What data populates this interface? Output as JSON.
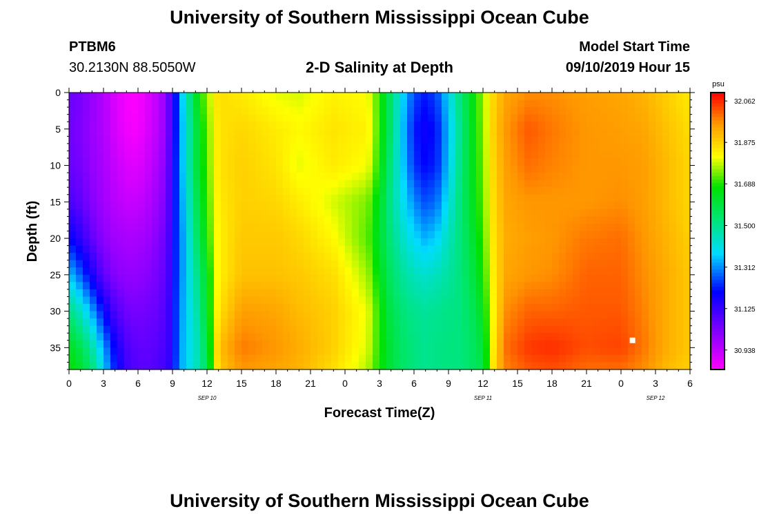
{
  "header": {
    "title": "University of Southern Mississippi Ocean Cube",
    "station": "PTBM6",
    "coords": "30.2130N 88.5050W",
    "plot_title": "2-D Salinity at Depth",
    "model_label": "Model Start Time",
    "model_time": "09/10/2019 Hour 15"
  },
  "footer": {
    "title": "University of Southern Mississippi Ocean Cube"
  },
  "chart_data": {
    "type": "heatmap",
    "title": "2-D Salinity at Depth",
    "xlabel": "Forecast Time(Z)",
    "ylabel": "Depth (ft)",
    "xlim": [
      0,
      54
    ],
    "ylim": [
      38,
      0
    ],
    "x_ticks": [
      0,
      3,
      6,
      9,
      12,
      15,
      18,
      21,
      24,
      27,
      30,
      33,
      36,
      39,
      42,
      45,
      48,
      51,
      54
    ],
    "x_tick_labels": [
      "0",
      "3",
      "6",
      "9",
      "12",
      "15",
      "18",
      "21",
      "0",
      "3",
      "6",
      "9",
      "12",
      "15",
      "18",
      "21",
      "0",
      "3",
      "6"
    ],
    "y_ticks": [
      0,
      5,
      10,
      15,
      20,
      25,
      30,
      35
    ],
    "y_tick_labels": [
      "0",
      "5",
      "10",
      "15",
      "20",
      "25",
      "30",
      "35"
    ],
    "date_labels": [
      {
        "x": 12,
        "text": "SEP 10"
      },
      {
        "x": 36,
        "text": "SEP 11"
      },
      {
        "x": 51,
        "text": "SEP 12"
      }
    ],
    "colorbar": {
      "unit": "psu",
      "range": [
        30.85,
        32.1
      ],
      "ticks": [
        32.062,
        31.875,
        31.688,
        31.5,
        31.312,
        31.125,
        30.938
      ],
      "tick_labels": [
        "32.062",
        "31.875",
        "31.688",
        "31.500",
        "31.312",
        "31.125",
        "30.938"
      ]
    },
    "depths": [
      0,
      5,
      10,
      15,
      20,
      25,
      30,
      35,
      38
    ],
    "profiles": [
      {
        "t": 0,
        "s": [
          31.06,
          31.05,
          31.06,
          31.1,
          31.2,
          31.36,
          31.52,
          31.64,
          31.68
        ]
      },
      {
        "t": 1,
        "s": [
          31.04,
          31.03,
          31.04,
          31.07,
          31.14,
          31.27,
          31.44,
          31.58,
          31.62
        ]
      },
      {
        "t": 2,
        "s": [
          31.0,
          30.99,
          31.0,
          31.02,
          31.07,
          31.17,
          31.33,
          31.48,
          31.53
        ]
      },
      {
        "t": 3,
        "s": [
          30.96,
          30.96,
          30.97,
          30.98,
          31.01,
          31.07,
          31.2,
          31.33,
          31.38
        ]
      },
      {
        "t": 4,
        "s": [
          30.9,
          30.91,
          30.93,
          30.95,
          30.98,
          31.02,
          31.1,
          31.19,
          31.22
        ]
      },
      {
        "t": 5,
        "s": [
          30.86,
          30.87,
          30.9,
          30.93,
          30.97,
          31.0,
          31.05,
          31.1,
          31.12
        ]
      },
      {
        "t": 6,
        "s": [
          30.85,
          30.86,
          30.89,
          30.93,
          30.97,
          31.0,
          31.04,
          31.07,
          31.08
        ]
      },
      {
        "t": 7,
        "s": [
          30.9,
          30.91,
          30.93,
          30.96,
          30.99,
          31.02,
          31.05,
          31.07,
          31.08
        ]
      },
      {
        "t": 8,
        "s": [
          30.96,
          30.96,
          30.98,
          31.0,
          31.03,
          31.05,
          31.07,
          31.09,
          31.1
        ]
      },
      {
        "t": 8.8,
        "s": [
          31.08,
          31.08,
          31.09,
          31.1,
          31.11,
          31.12,
          31.13,
          31.13,
          31.14
        ]
      },
      {
        "t": 9.4,
        "s": [
          31.24,
          31.24,
          31.25,
          31.25,
          31.25,
          31.25,
          31.26,
          31.26,
          31.27
        ]
      },
      {
        "t": 10,
        "s": [
          31.4,
          31.38,
          31.38,
          31.36,
          31.34,
          31.34,
          31.35,
          31.36,
          31.36
        ]
      },
      {
        "t": 11,
        "s": [
          31.62,
          31.58,
          31.58,
          31.55,
          31.52,
          31.48,
          31.45,
          31.43,
          31.44
        ]
      },
      {
        "t": 12,
        "s": [
          31.76,
          31.73,
          31.72,
          31.7,
          31.68,
          31.63,
          31.62,
          31.58,
          31.56
        ]
      },
      {
        "t": 13,
        "s": [
          31.86,
          31.85,
          31.85,
          31.84,
          31.83,
          31.83,
          31.85,
          31.9,
          31.88
        ]
      },
      {
        "t": 15,
        "s": [
          31.84,
          31.87,
          31.88,
          31.88,
          31.89,
          31.9,
          31.95,
          31.99,
          31.96
        ]
      },
      {
        "t": 18,
        "s": [
          31.8,
          31.84,
          31.85,
          31.87,
          31.89,
          31.9,
          31.94,
          31.96,
          31.94
        ]
      },
      {
        "t": 20,
        "s": [
          31.79,
          31.82,
          31.8,
          31.84,
          31.87,
          31.89,
          31.91,
          31.93,
          31.92
        ]
      },
      {
        "t": 23,
        "s": [
          31.83,
          31.85,
          31.84,
          31.79,
          31.82,
          31.86,
          31.88,
          31.88,
          31.86
        ]
      },
      {
        "t": 26,
        "s": [
          31.81,
          31.83,
          31.81,
          31.74,
          31.72,
          31.76,
          31.8,
          31.79,
          31.77
        ]
      },
      {
        "t": 27,
        "s": [
          31.7,
          31.7,
          31.68,
          31.64,
          31.62,
          31.65,
          31.69,
          31.69,
          31.68
        ]
      },
      {
        "t": 28,
        "s": [
          31.54,
          31.54,
          31.52,
          31.5,
          31.52,
          31.55,
          31.58,
          31.6,
          31.6
        ]
      },
      {
        "t": 29,
        "s": [
          31.38,
          31.36,
          31.37,
          31.4,
          31.44,
          31.49,
          31.53,
          31.55,
          31.55
        ]
      },
      {
        "t": 30,
        "s": [
          31.26,
          31.22,
          31.24,
          31.31,
          31.38,
          31.45,
          31.5,
          31.52,
          31.52
        ]
      },
      {
        "t": 31,
        "s": [
          31.22,
          31.18,
          31.2,
          31.26,
          31.34,
          31.43,
          31.49,
          31.5,
          31.5
        ]
      },
      {
        "t": 32,
        "s": [
          31.26,
          31.22,
          31.23,
          31.29,
          31.37,
          31.45,
          31.5,
          31.51,
          31.51
        ]
      },
      {
        "t": 33,
        "s": [
          31.38,
          31.35,
          31.36,
          31.4,
          31.45,
          31.48,
          31.51,
          31.52,
          31.52
        ]
      },
      {
        "t": 34,
        "s": [
          31.52,
          31.5,
          31.51,
          31.52,
          31.52,
          31.52,
          31.52,
          31.52,
          31.52
        ]
      },
      {
        "t": 35,
        "s": [
          31.64,
          31.63,
          31.63,
          31.62,
          31.6,
          31.58,
          31.56,
          31.55,
          31.55
        ]
      },
      {
        "t": 36,
        "s": [
          31.76,
          31.75,
          31.74,
          31.73,
          31.71,
          31.68,
          31.64,
          31.6,
          31.58
        ]
      },
      {
        "t": 37,
        "s": [
          31.88,
          31.89,
          31.88,
          31.87,
          31.86,
          31.85,
          31.84,
          31.86,
          31.88
        ]
      },
      {
        "t": 38,
        "s": [
          31.94,
          31.96,
          31.95,
          31.94,
          31.93,
          31.94,
          31.97,
          32.0,
          31.98
        ]
      },
      {
        "t": 40,
        "s": [
          31.97,
          32.02,
          32.0,
          31.96,
          31.95,
          31.96,
          32.01,
          32.05,
          32.02
        ]
      },
      {
        "t": 42,
        "s": [
          31.97,
          31.99,
          31.98,
          31.96,
          31.96,
          31.97,
          32.01,
          32.06,
          32.03
        ]
      },
      {
        "t": 45,
        "s": [
          31.95,
          31.96,
          31.96,
          31.96,
          31.99,
          32.01,
          32.02,
          32.03,
          32.0
        ]
      },
      {
        "t": 48,
        "s": [
          31.94,
          31.95,
          31.96,
          31.97,
          32.0,
          32.01,
          32.02,
          32.04,
          32.0
        ]
      },
      {
        "t": 50,
        "s": [
          31.92,
          31.94,
          31.95,
          31.95,
          31.96,
          31.97,
          31.98,
          31.99,
          31.97
        ]
      },
      {
        "t": 52,
        "s": [
          31.88,
          31.9,
          31.91,
          31.91,
          31.92,
          31.93,
          31.93,
          31.93,
          31.91
        ]
      },
      {
        "t": 54,
        "s": [
          31.84,
          31.86,
          31.87,
          31.87,
          31.88,
          31.89,
          31.89,
          31.89,
          31.88
        ]
      }
    ],
    "marker": {
      "t": 49,
      "depth": 34
    }
  }
}
